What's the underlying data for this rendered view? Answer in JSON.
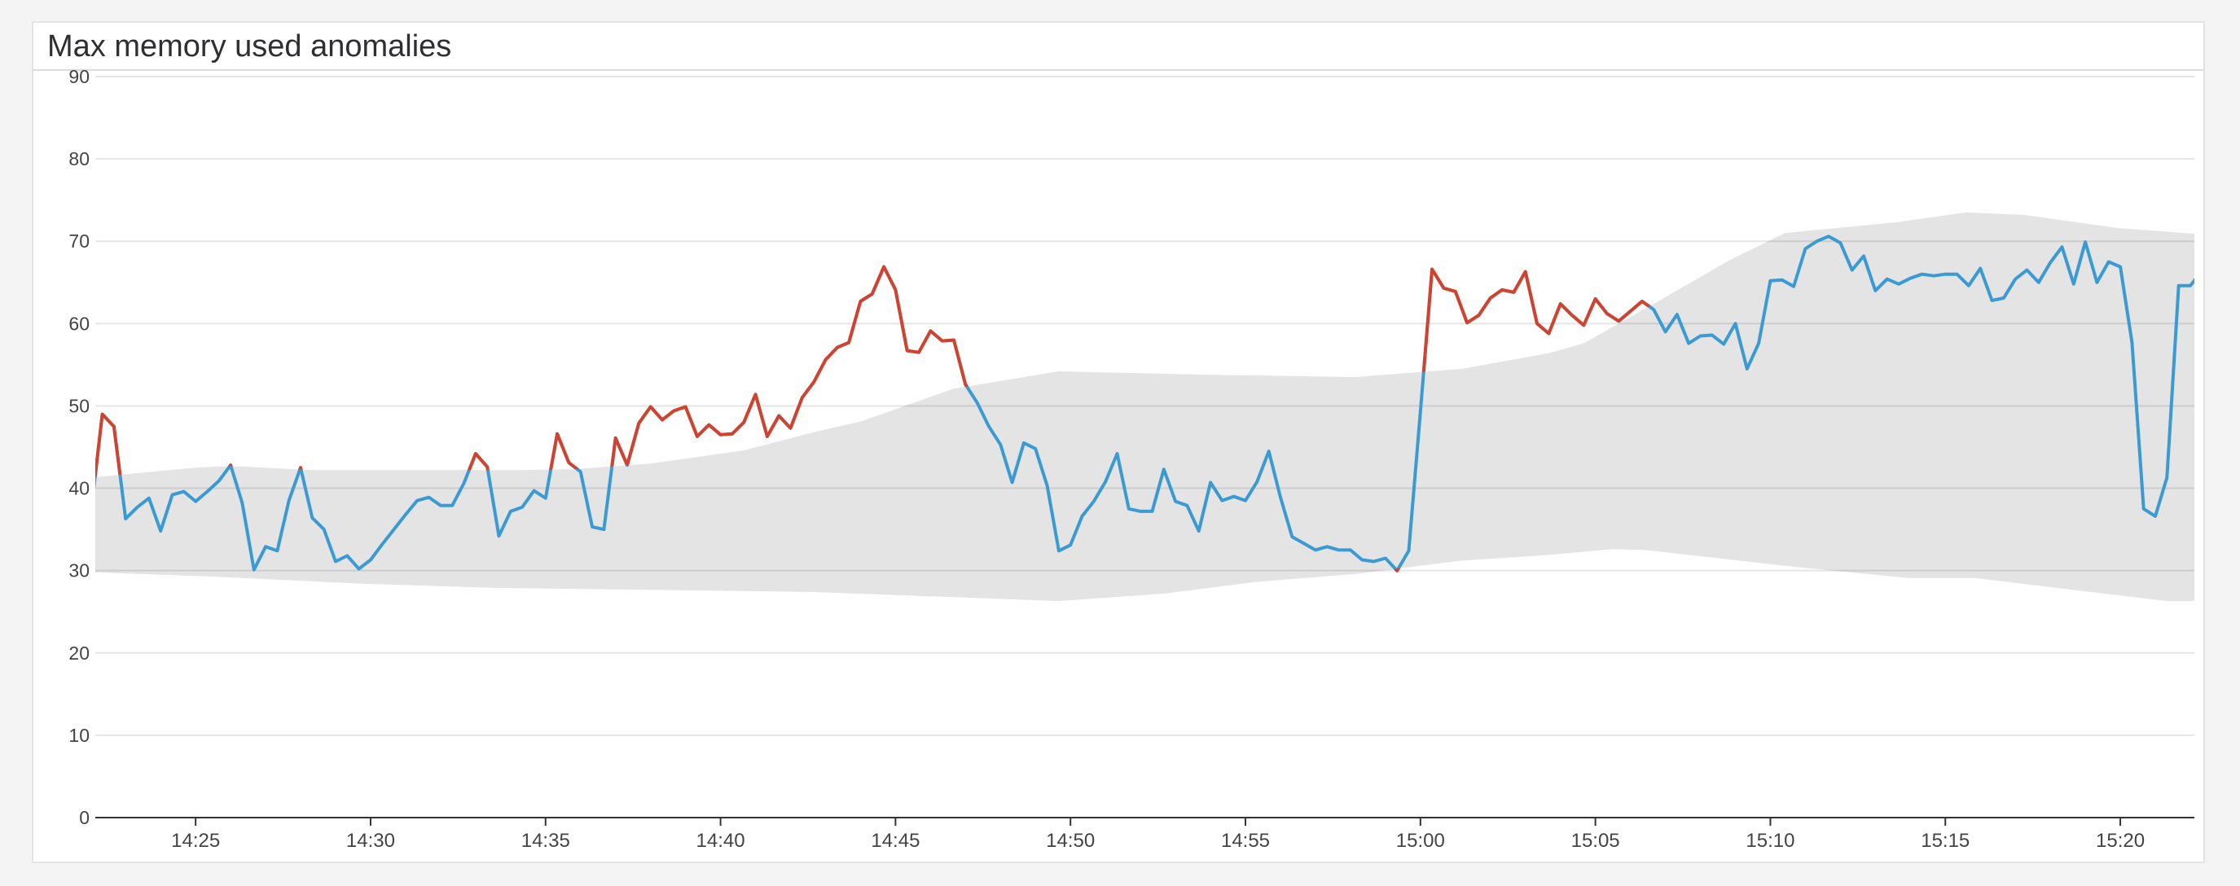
{
  "title": "Max memory used anomalies",
  "chart_data": {
    "type": "line",
    "title": "Max memory used anomalies",
    "xlabel": "",
    "ylabel": "",
    "ylim": [
      0,
      90
    ],
    "xlim": [
      "14:22:08",
      "15:22:07"
    ],
    "grid": true,
    "legend": "none",
    "yticks": [
      "0",
      "10",
      "20",
      "30",
      "40",
      "50",
      "60",
      "70",
      "80",
      "90"
    ],
    "xticks": [
      "14:25",
      "14:30",
      "14:35",
      "14:40",
      "14:45",
      "14:50",
      "14:55",
      "15:00",
      "15:05",
      "15:10",
      "15:15",
      "15:20"
    ],
    "colors": {
      "normal": "#3a9ad4",
      "anomaly": "#d1432e",
      "band": "#e4e4e4"
    },
    "series": [
      {
        "x": [
          "14:22:00",
          "14:22:20",
          "14:22:40",
          "14:23:00",
          "14:23:20",
          "14:23:40",
          "14:24:00",
          "14:24:20",
          "14:24:40",
          "14:25:00",
          "14:25:20",
          "14:25:40",
          "14:26:00",
          "14:26:20",
          "14:26:40",
          "14:27:00",
          "14:27:20",
          "14:27:40",
          "14:28:00",
          "14:28:20",
          "14:28:40",
          "14:29:00",
          "14:29:20",
          "14:29:40",
          "14:30:00",
          "14:30:20",
          "14:30:40",
          "14:31:00",
          "14:31:20",
          "14:31:40",
          "14:32:00",
          "14:32:20",
          "14:32:40",
          "14:33:00",
          "14:33:20",
          "14:33:40",
          "14:34:00",
          "14:34:20",
          "14:34:40",
          "14:35:00",
          "14:35:20",
          "14:35:40",
          "14:36:00",
          "14:36:20",
          "14:36:40",
          "14:37:00",
          "14:37:20",
          "14:37:40",
          "14:38:00",
          "14:38:20",
          "14:38:40",
          "14:39:00",
          "14:39:20",
          "14:39:40",
          "14:40:00",
          "14:40:20",
          "14:40:40",
          "14:41:00",
          "14:41:20",
          "14:41:40",
          "14:42:00",
          "14:42:20",
          "14:42:40",
          "14:43:00",
          "14:43:20",
          "14:43:40",
          "14:44:00",
          "14:44:20",
          "14:44:40",
          "14:45:00",
          "14:45:20",
          "14:45:40",
          "14:46:00",
          "14:46:20",
          "14:46:40",
          "14:47:00",
          "14:47:20",
          "14:47:40",
          "14:48:00",
          "14:48:20",
          "14:48:40",
          "14:49:00",
          "14:49:20",
          "14:49:40",
          "14:50:00",
          "14:50:20",
          "14:50:40",
          "14:51:00",
          "14:51:20",
          "14:51:40",
          "14:52:00",
          "14:52:20",
          "14:52:40",
          "14:53:00",
          "14:53:20",
          "14:53:40",
          "14:54:00",
          "14:54:20",
          "14:54:40",
          "14:55:00",
          "14:55:20",
          "14:55:40",
          "14:56:00",
          "14:56:20",
          "14:56:40",
          "14:57:00",
          "14:57:20",
          "14:57:40",
          "14:58:00",
          "14:58:20",
          "14:58:40",
          "14:59:00",
          "14:59:20",
          "14:59:40",
          "15:00:00",
          "15:00:20",
          "15:00:40",
          "15:01:00",
          "15:01:20",
          "15:01:40",
          "15:02:00",
          "15:02:20",
          "15:02:40",
          "15:03:00",
          "15:03:20",
          "15:03:40",
          "15:04:00",
          "15:04:20",
          "15:04:40",
          "15:05:00",
          "15:05:20",
          "15:05:40",
          "15:06:00",
          "15:06:20",
          "15:06:40",
          "15:07:00",
          "15:07:20",
          "15:07:40",
          "15:08:00",
          "15:08:20",
          "15:08:40",
          "15:09:00",
          "15:09:20",
          "15:09:40",
          "15:10:00",
          "15:10:20",
          "15:10:40",
          "15:11:00",
          "15:11:20",
          "15:11:40",
          "15:12:00",
          "15:12:20",
          "15:12:40",
          "15:13:00",
          "15:13:20",
          "15:13:40",
          "15:14:00",
          "15:14:20",
          "15:14:40",
          "15:15:00",
          "15:15:20",
          "15:15:40",
          "15:16:00",
          "15:16:20",
          "15:16:40",
          "15:17:00",
          "15:17:20",
          "15:17:40",
          "15:18:00",
          "15:18:20",
          "15:18:40",
          "15:19:00",
          "15:19:20",
          "15:19:40",
          "15:20:00",
          "15:20:20",
          "15:20:40",
          "15:21:00",
          "15:21:20",
          "15:21:40",
          "15:22:00",
          "15:22:20"
        ],
        "values": [
          36.7,
          49.0,
          47.5,
          36.3,
          37.7,
          38.8,
          34.8,
          39.2,
          39.6,
          38.4,
          39.6,
          40.9,
          42.8,
          38.2,
          30.1,
          32.9,
          32.4,
          38.5,
          42.5,
          36.4,
          35.0,
          31.1,
          31.8,
          30.2,
          31.3,
          33.2,
          35.0,
          36.8,
          38.5,
          38.9,
          37.9,
          37.9,
          40.6,
          44.2,
          42.6,
          34.2,
          37.2,
          37.7,
          39.7,
          38.8,
          46.6,
          43.1,
          42.0,
          35.3,
          35.0,
          46.1,
          42.8,
          47.9,
          49.9,
          48.3,
          49.4,
          49.9,
          46.3,
          47.7,
          46.5,
          46.6,
          48.0,
          51.4,
          46.3,
          48.8,
          47.3,
          51.0,
          52.9,
          55.6,
          57.1,
          57.7,
          62.7,
          63.6,
          66.9,
          64.1,
          56.7,
          56.5,
          59.1,
          57.9,
          58.0,
          52.6,
          50.4,
          47.5,
          45.3,
          40.7,
          45.5,
          44.8,
          40.3,
          32.4,
          33.1,
          36.6,
          38.4,
          40.8,
          44.2,
          37.5,
          37.2,
          37.2,
          42.3,
          38.4,
          37.9,
          34.8,
          40.7,
          38.5,
          39.0,
          38.5,
          40.8,
          44.5,
          38.9,
          34.1,
          33.3,
          32.5,
          32.9,
          32.5,
          32.5,
          31.3,
          31.1,
          31.5,
          30.0,
          32.4,
          49.3,
          66.6,
          64.3,
          63.9,
          60.1,
          61.0,
          63.1,
          64.1,
          63.8,
          66.3,
          60.0,
          58.8,
          62.4,
          61.0,
          59.8,
          63.0,
          61.2,
          60.3,
          61.5,
          62.7,
          61.7,
          59.0,
          61.1,
          57.6,
          58.5,
          58.6,
          57.5,
          60.0,
          54.5,
          57.6,
          65.2,
          65.3,
          64.5,
          69.1,
          70.0,
          70.6,
          69.8,
          66.5,
          68.2,
          64.0,
          65.4,
          64.8,
          65.5,
          66.0,
          65.8,
          66.0,
          66.0,
          64.6,
          66.7,
          62.8,
          63.1,
          65.4,
          66.5,
          65.0,
          67.4,
          69.3,
          64.8,
          69.9,
          65.0,
          67.5,
          66.9,
          57.7,
          37.5,
          36.6,
          41.3,
          64.6,
          64.6,
          66.4
        ]
      }
    ],
    "band": {
      "upper": [
        [
          "14:22:00",
          41.3
        ],
        [
          "14:25:00",
          42.5
        ],
        [
          "14:26:00",
          42.7
        ],
        [
          "14:28:20",
          42.2
        ],
        [
          "14:34:00",
          42.2
        ],
        [
          "14:35:45",
          42.3
        ],
        [
          "14:38:00",
          43.0
        ],
        [
          "14:40:40",
          44.6
        ],
        [
          "14:42:40",
          46.8
        ],
        [
          "14:44:00",
          48.1
        ],
        [
          "14:46:40",
          52.1
        ],
        [
          "14:49:40",
          54.2
        ],
        [
          "14:53:45",
          53.8
        ],
        [
          "14:58:10",
          53.5
        ],
        [
          "15:01:10",
          54.5
        ],
        [
          "15:03:40",
          56.4
        ],
        [
          "15:04:40",
          57.6
        ],
        [
          "15:06:50",
          62.8
        ],
        [
          "15:08:50",
          67.7
        ],
        [
          "15:10:25",
          71.0
        ],
        [
          "15:13:35",
          72.3
        ],
        [
          "15:15:35",
          73.5
        ],
        [
          "15:17:15",
          73.2
        ],
        [
          "15:19:55",
          71.6
        ],
        [
          "15:22:10",
          70.9
        ]
      ],
      "lower": [
        [
          "14:22:00",
          29.8
        ],
        [
          "14:25:20",
          29.3
        ],
        [
          "14:29:50",
          28.4
        ],
        [
          "14:33:30",
          27.9
        ],
        [
          "14:37:10",
          27.7
        ],
        [
          "14:42:40",
          27.4
        ],
        [
          "14:49:40",
          26.3
        ],
        [
          "14:52:40",
          27.2
        ],
        [
          "14:55:15",
          28.6
        ],
        [
          "14:58:10",
          29.6
        ],
        [
          "15:01:10",
          31.2
        ],
        [
          "15:03:40",
          31.9
        ],
        [
          "15:05:30",
          32.6
        ],
        [
          "15:06:25",
          32.5
        ],
        [
          "15:10:35",
          30.5
        ],
        [
          "15:13:55",
          29.1
        ],
        [
          "15:15:50",
          29.1
        ],
        [
          "15:18:45",
          27.6
        ],
        [
          "15:21:20",
          26.3
        ],
        [
          "15:22:10",
          26.3
        ]
      ]
    }
  }
}
